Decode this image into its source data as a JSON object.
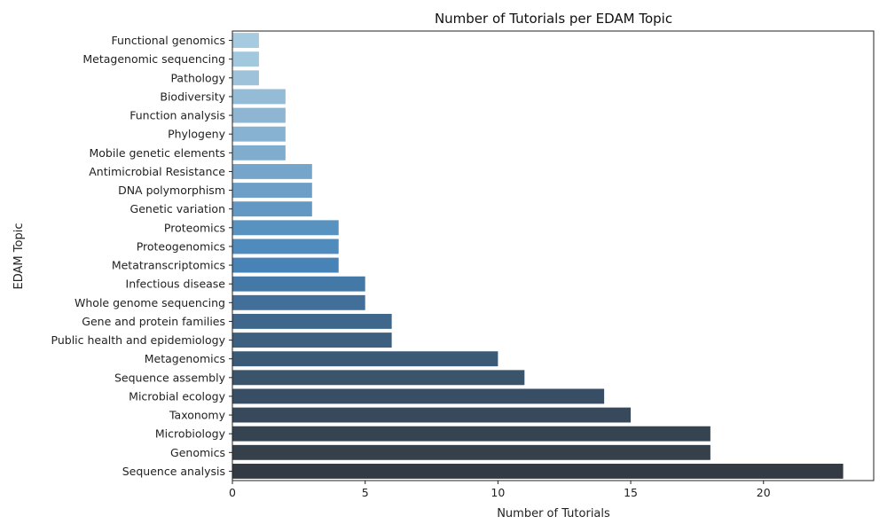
{
  "chart_data": {
    "type": "bar",
    "orientation": "horizontal",
    "title": "Number of Tutorials per EDAM Topic",
    "xlabel": "Number of Tutorials",
    "ylabel": "EDAM Topic",
    "xlim": [
      0,
      24.15
    ],
    "xticks": [
      0,
      5,
      10,
      15,
      20
    ],
    "grid": false,
    "legend": "none",
    "palette": "Blues_d",
    "categories": [
      "Functional genomics",
      "Metagenomic sequencing",
      "Pathology",
      "Biodiversity",
      "Function analysis",
      "Phylogeny",
      "Mobile genetic elements",
      "Antimicrobial Resistance",
      "DNA polymorphism",
      "Genetic variation",
      "Proteomics",
      "Proteogenomics",
      "Metatranscriptomics",
      "Infectious disease",
      "Whole genome sequencing",
      "Gene and protein families",
      "Public health and epidemiology",
      "Metagenomics",
      "Sequence assembly",
      "Microbial ecology",
      "Taxonomy",
      "Microbiology",
      "Genomics",
      "Sequence analysis"
    ],
    "values": [
      1,
      1,
      1,
      2,
      2,
      2,
      2,
      3,
      3,
      3,
      4,
      4,
      4,
      5,
      5,
      6,
      6,
      10,
      11,
      14,
      15,
      18,
      18,
      23
    ],
    "colors": [
      "#a6cbe0",
      "#a2c8de",
      "#9dc2da",
      "#95bcd6",
      "#8eb6d3",
      "#88b2d1",
      "#80acce",
      "#76a5cb",
      "#6d9ec7",
      "#6498c4",
      "#5892c0",
      "#4f8bbc",
      "#4883b8",
      "#4479a7",
      "#416f99",
      "#3f678c",
      "#3d6080",
      "#3b5a76",
      "#3a546c",
      "#384e64",
      "#37495b",
      "#364452",
      "#35404b",
      "#343a43"
    ]
  }
}
